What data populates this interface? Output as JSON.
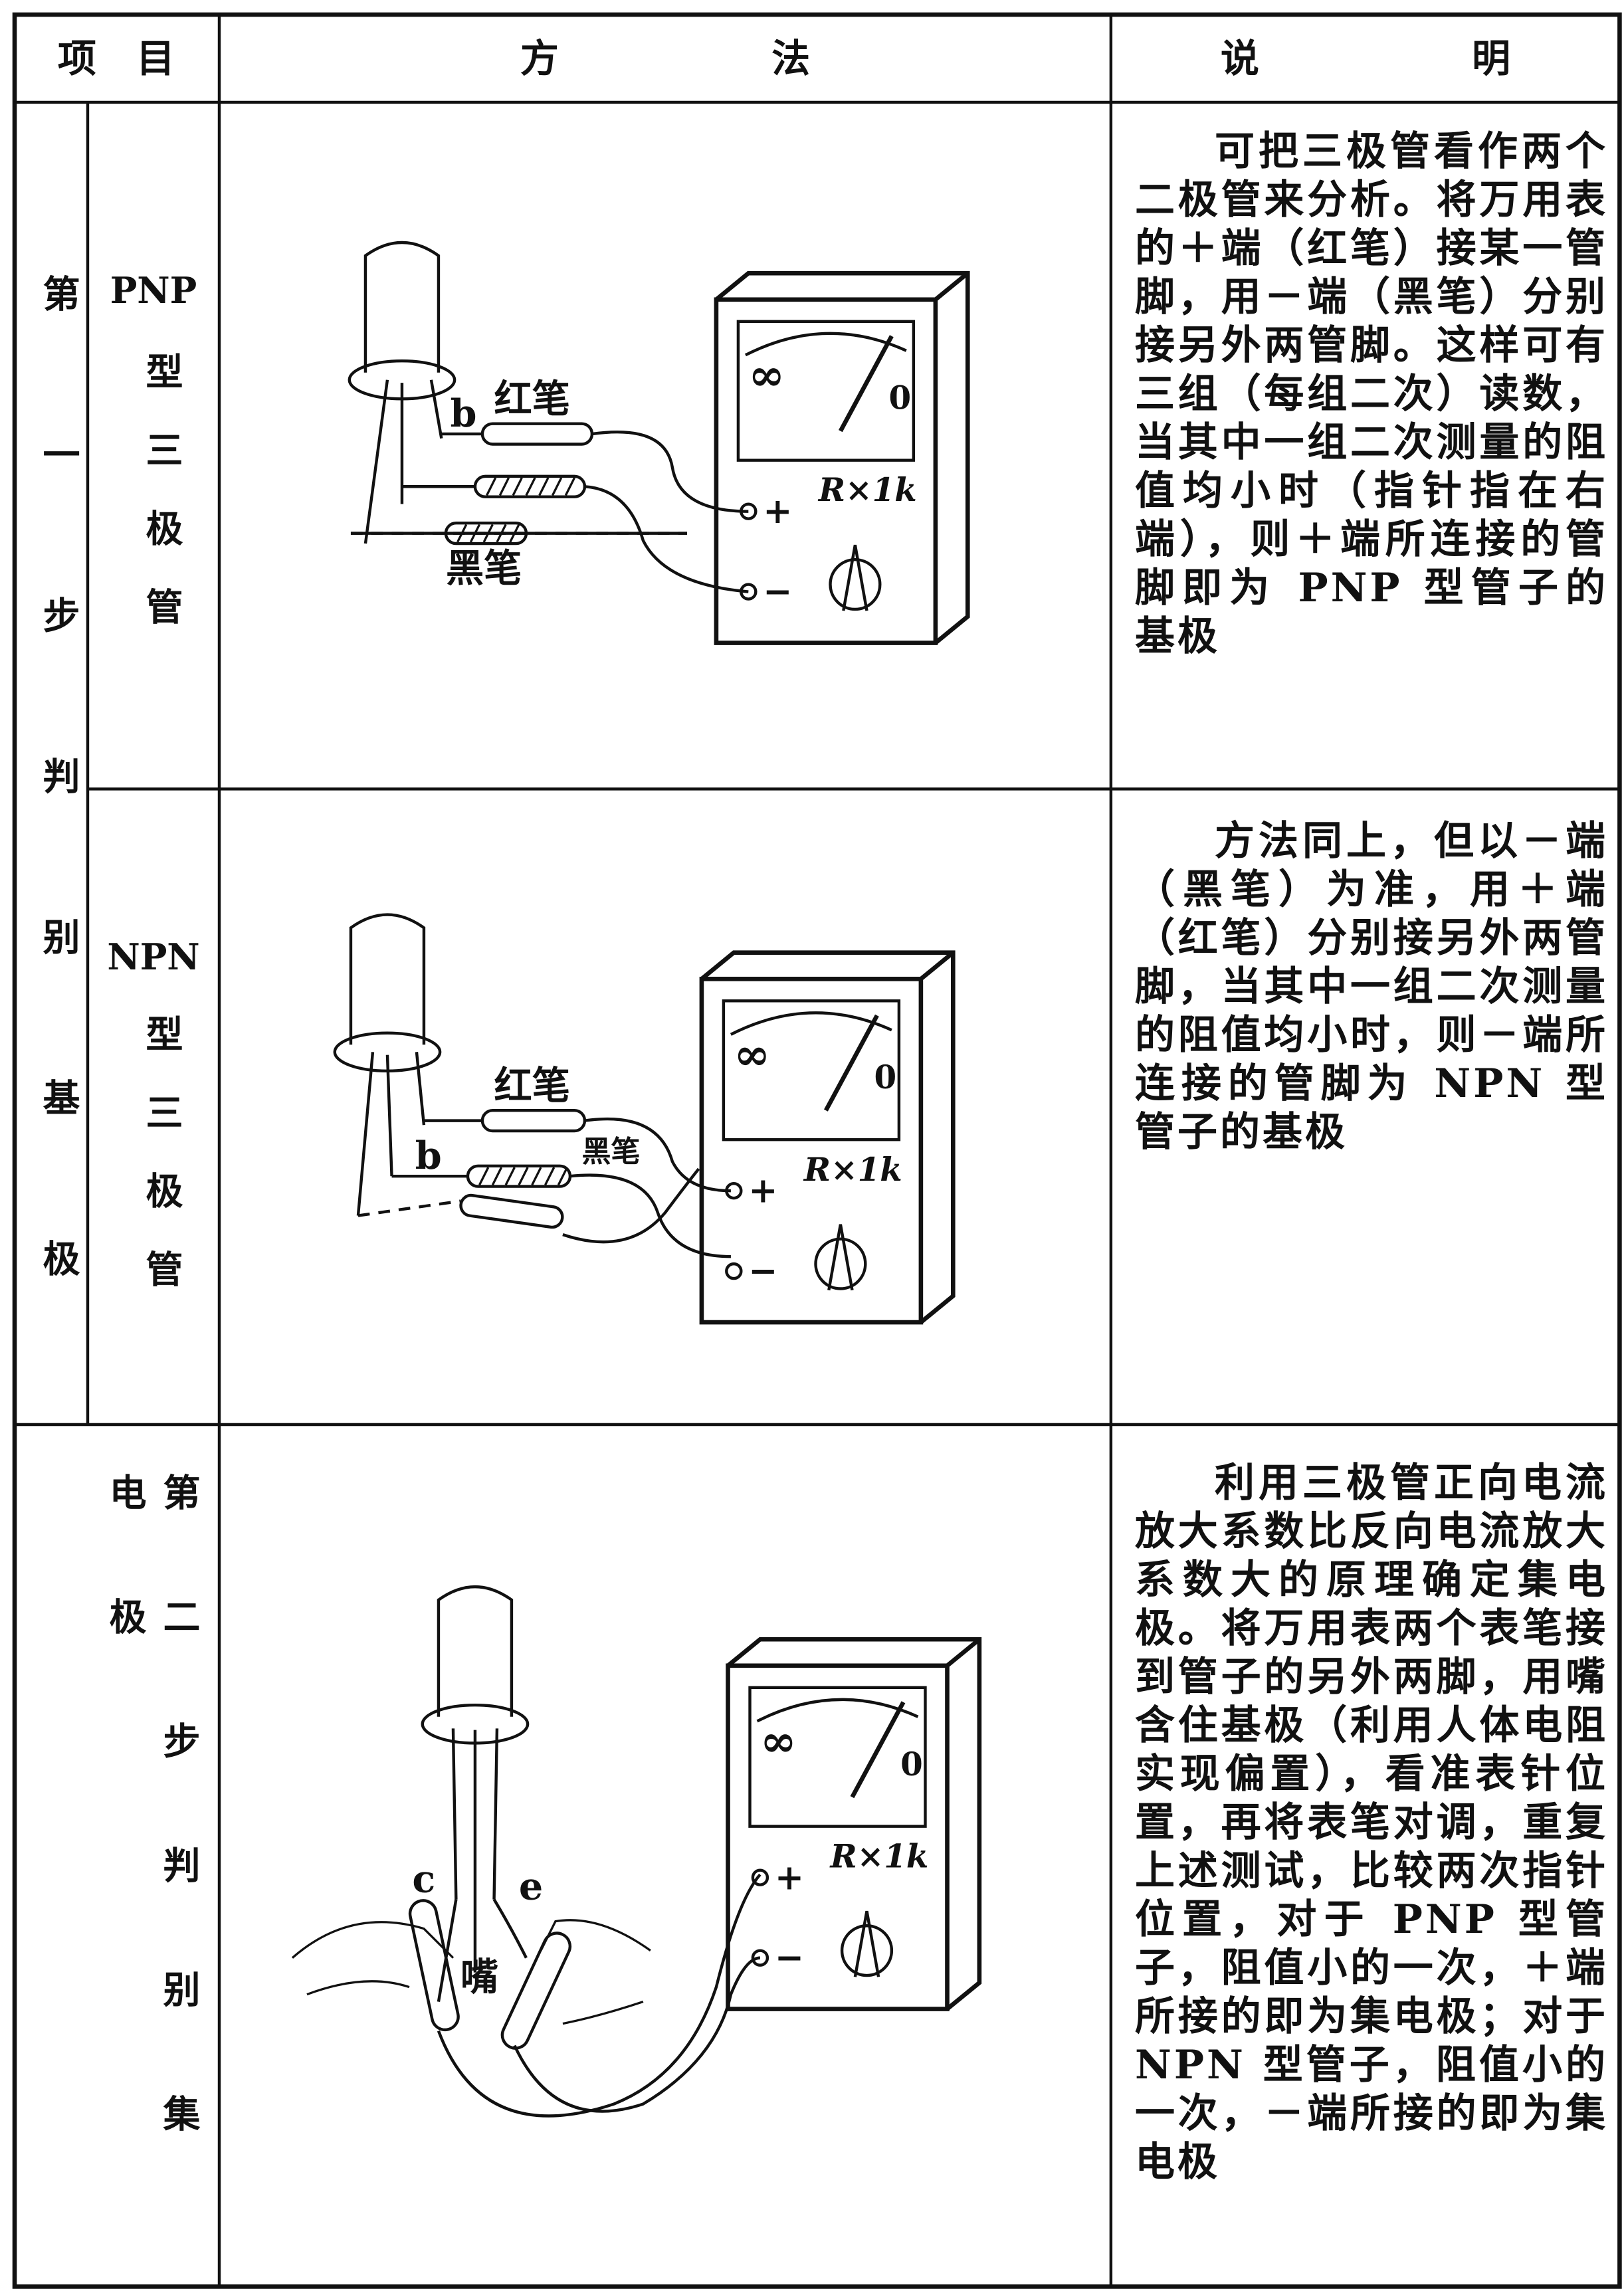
{
  "header": [
    "项 目",
    "方 法",
    "说 明"
  ],
  "sections": [
    {
      "step": "第一步判别基极",
      "rows": [
        {
          "prefix": "PNP",
          "name": "型三极管",
          "diagram": {
            "pin": "b",
            "red_pen": "红笔",
            "black_pen": "黑笔",
            "meter": {
              "infinity": "∞",
              "zero": "0",
              "plus": "+",
              "minus": "−",
              "range": "R×1k"
            }
          },
          "description": "可把三极管看作两个二极管来分析。将万用表的＋端（红笔）接某一管脚，用－端（黑笔）分别接另外两管脚。这样可有三组（每组二次）读数，当其中一组二次测量的阻值均小时（指针指在右端），则＋端所连接的管脚即为 PNP 型管子的基极"
        },
        {
          "prefix": "NPN",
          "name": "型三极管",
          "diagram": {
            "pin": "b",
            "red_pen": "红笔",
            "black_pen": "黑笔",
            "meter": {
              "infinity": "∞",
              "zero": "0",
              "plus": "+",
              "minus": "−",
              "range": "R×1k"
            }
          },
          "description": "方法同上，但以－端（黑笔）为准，用＋端（红笔）分别接另外两管脚，当其中一组二次测量的阻值均小时，则－端所连接的管脚为 NPN 型管子的基极"
        }
      ]
    },
    {
      "step": "第二步判别集电极",
      "diagram": {
        "pin_c": "c",
        "pin_e": "e",
        "mouth": "嘴",
        "meter": {
          "infinity": "∞",
          "zero": "0",
          "plus": "+",
          "minus": "−",
          "range": "R×1k"
        }
      },
      "description": "利用三极管正向电流放大系数比反向电流放大系数大的原理确定集电极。将万用表两个表笔接到管子的另外两脚，用嘴含住基极（利用人体电阻实现偏置），看准表针位置，再将表笔对调，重复上述测试，比较两次指针位置，对于 PNP 型管子，阻值小的一次，＋端所接的即为集电极；对于 NPN 型管子，阻值小的一次，－端所接的即为集电极"
    }
  ]
}
